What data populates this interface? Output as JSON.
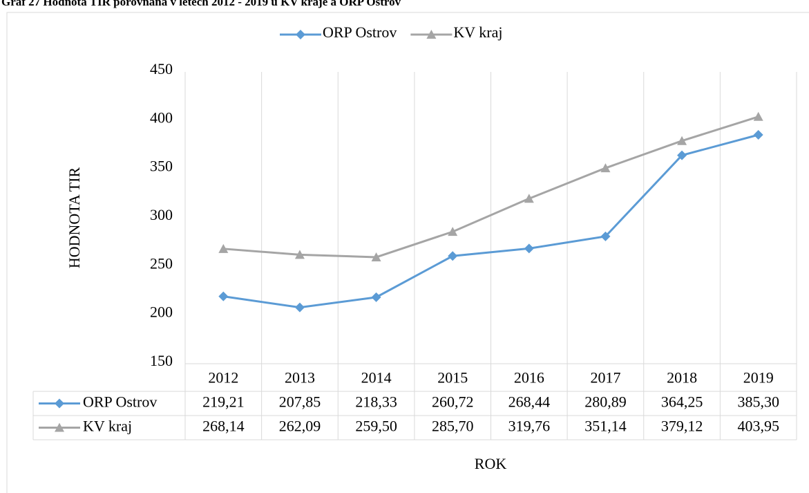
{
  "chart_data": {
    "type": "line",
    "title": "Graf 27 Hodnota TIR porovnaná v letech 2012 - 2019 u KV kraje a ORP Ostrov",
    "xlabel": "ROK",
    "ylabel": "HODNOTA TIR",
    "categories": [
      "2012",
      "2013",
      "2014",
      "2015",
      "2016",
      "2017",
      "2018",
      "2019"
    ],
    "series": [
      {
        "name": "ORP Ostrov",
        "color": "#5b9bd5",
        "marker": "diamond",
        "values": [
          219.21,
          207.85,
          218.33,
          260.72,
          268.44,
          280.89,
          364.25,
          385.3
        ],
        "value_labels": [
          "219,21",
          "207,85",
          "218,33",
          "260,72",
          "268,44",
          "280,89",
          "364,25",
          "385,30"
        ]
      },
      {
        "name": "KV kraj",
        "color": "#a5a5a5",
        "marker": "triangle",
        "values": [
          268.14,
          262.09,
          259.5,
          285.7,
          319.76,
          351.14,
          379.12,
          403.95
        ],
        "value_labels": [
          "268,14",
          "262,09",
          "259,50",
          "285,70",
          "319,76",
          "351,14",
          "379,12",
          "403,95"
        ]
      }
    ],
    "ylim": [
      150,
      450
    ],
    "yticks": [
      150,
      200,
      250,
      300,
      350,
      400,
      450
    ],
    "grid": true,
    "legend": "top",
    "data_table": true
  }
}
